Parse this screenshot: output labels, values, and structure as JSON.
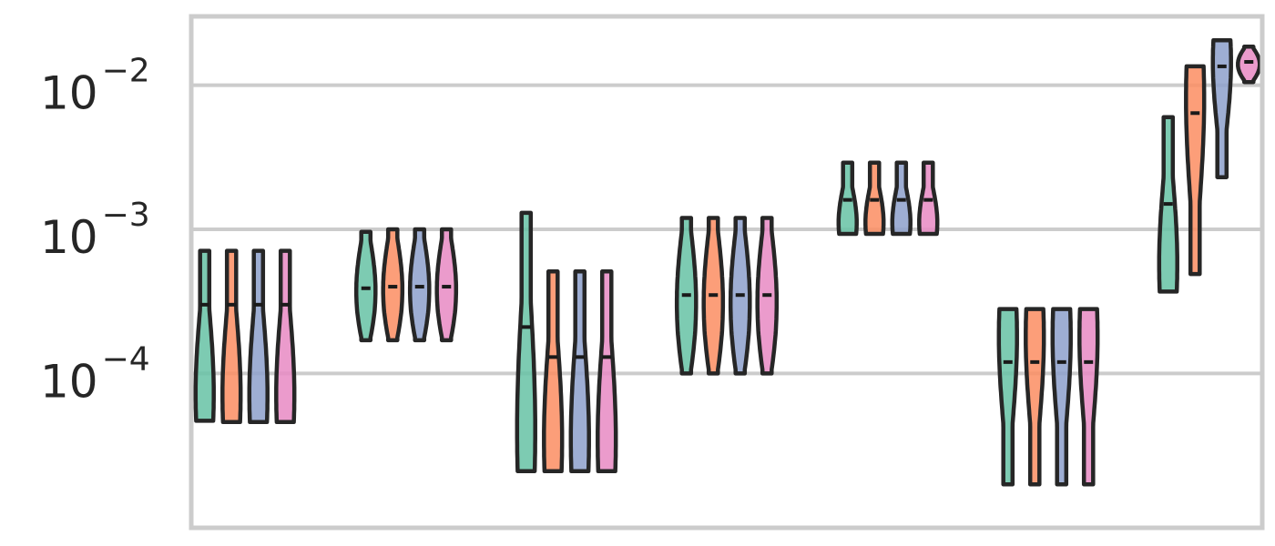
{
  "chart_data": {
    "type": "violin",
    "title": "",
    "xlabel": "",
    "ylabel": "",
    "yscale": "log",
    "ylim": [
      8.5e-06,
      0.03
    ],
    "grid": "horizontal",
    "y_ticks": [
      {
        "value": 0.01,
        "base": "10",
        "exp": "−2"
      },
      {
        "value": 0.001,
        "base": "10",
        "exp": "−3"
      },
      {
        "value": 0.0001,
        "base": "10",
        "exp": "−4"
      }
    ],
    "palette": [
      "#66c2a5",
      "#fc8d62",
      "#8da0cb",
      "#e78ac3"
    ],
    "outline_color": "#262626",
    "groups": [
      {
        "violins": [
          {
            "min": 4.7e-05,
            "max": 0.00071,
            "median": 0.0003,
            "shape": "bottom-heavy"
          },
          {
            "min": 4.6e-05,
            "max": 0.00071,
            "median": 0.0003,
            "shape": "bottom-heavy"
          },
          {
            "min": 4.6e-05,
            "max": 0.00071,
            "median": 0.0003,
            "shape": "bottom-heavy"
          },
          {
            "min": 4.6e-05,
            "max": 0.00071,
            "median": 0.0003,
            "shape": "bottom-heavy"
          }
        ]
      },
      {
        "violins": [
          {
            "min": 0.00017,
            "max": 0.00096,
            "median": 0.00039,
            "shape": "even"
          },
          {
            "min": 0.00017,
            "max": 0.001,
            "median": 0.0004,
            "shape": "even"
          },
          {
            "min": 0.00017,
            "max": 0.001,
            "median": 0.0004,
            "shape": "even"
          },
          {
            "min": 0.00017,
            "max": 0.001,
            "median": 0.0004,
            "shape": "even"
          }
        ]
      },
      {
        "violins": [
          {
            "min": 2.1e-05,
            "max": 0.0013,
            "median": 0.00021,
            "shape": "bottom-heavy"
          },
          {
            "min": 2.1e-05,
            "max": 0.00051,
            "median": 0.00013,
            "shape": "bottom-heavy"
          },
          {
            "min": 2.1e-05,
            "max": 0.00051,
            "median": 0.00013,
            "shape": "bottom-heavy"
          },
          {
            "min": 2.1e-05,
            "max": 0.00051,
            "median": 0.00013,
            "shape": "bottom-heavy"
          }
        ]
      },
      {
        "violins": [
          {
            "min": 0.0001,
            "max": 0.0012,
            "median": 0.00035,
            "shape": "even"
          },
          {
            "min": 0.0001,
            "max": 0.0012,
            "median": 0.00035,
            "shape": "even"
          },
          {
            "min": 0.0001,
            "max": 0.0012,
            "median": 0.00035,
            "shape": "even"
          },
          {
            "min": 0.0001,
            "max": 0.0012,
            "median": 0.00035,
            "shape": "even"
          }
        ]
      },
      {
        "violins": [
          {
            "min": 0.00093,
            "max": 0.0029,
            "median": 0.0016,
            "shape": "bottom-heavy"
          },
          {
            "min": 0.00093,
            "max": 0.0029,
            "median": 0.0016,
            "shape": "bottom-heavy"
          },
          {
            "min": 0.00093,
            "max": 0.0029,
            "median": 0.0016,
            "shape": "bottom-heavy"
          },
          {
            "min": 0.00093,
            "max": 0.0029,
            "median": 0.0016,
            "shape": "bottom-heavy"
          }
        ]
      },
      {
        "violins": [
          {
            "min": 1.7e-05,
            "max": 0.00028,
            "median": 0.00012,
            "shape": "top-heavy"
          },
          {
            "min": 1.7e-05,
            "max": 0.00028,
            "median": 0.00012,
            "shape": "top-heavy"
          },
          {
            "min": 1.7e-05,
            "max": 0.00028,
            "median": 0.00012,
            "shape": "top-heavy"
          },
          {
            "min": 1.7e-05,
            "max": 0.00028,
            "median": 0.00012,
            "shape": "top-heavy"
          }
        ]
      },
      {
        "violins": [
          {
            "min": 0.00037,
            "max": 0.006,
            "median": 0.0015,
            "shape": "bottom-heavy"
          },
          {
            "min": 0.00049,
            "max": 0.0135,
            "median": 0.0064,
            "shape": "top-heavy"
          },
          {
            "min": 0.0023,
            "max": 0.0205,
            "median": 0.0135,
            "shape": "top-heavy"
          },
          {
            "min": 0.0105,
            "max": 0.0185,
            "median": 0.0145,
            "shape": "compact"
          }
        ]
      }
    ]
  }
}
